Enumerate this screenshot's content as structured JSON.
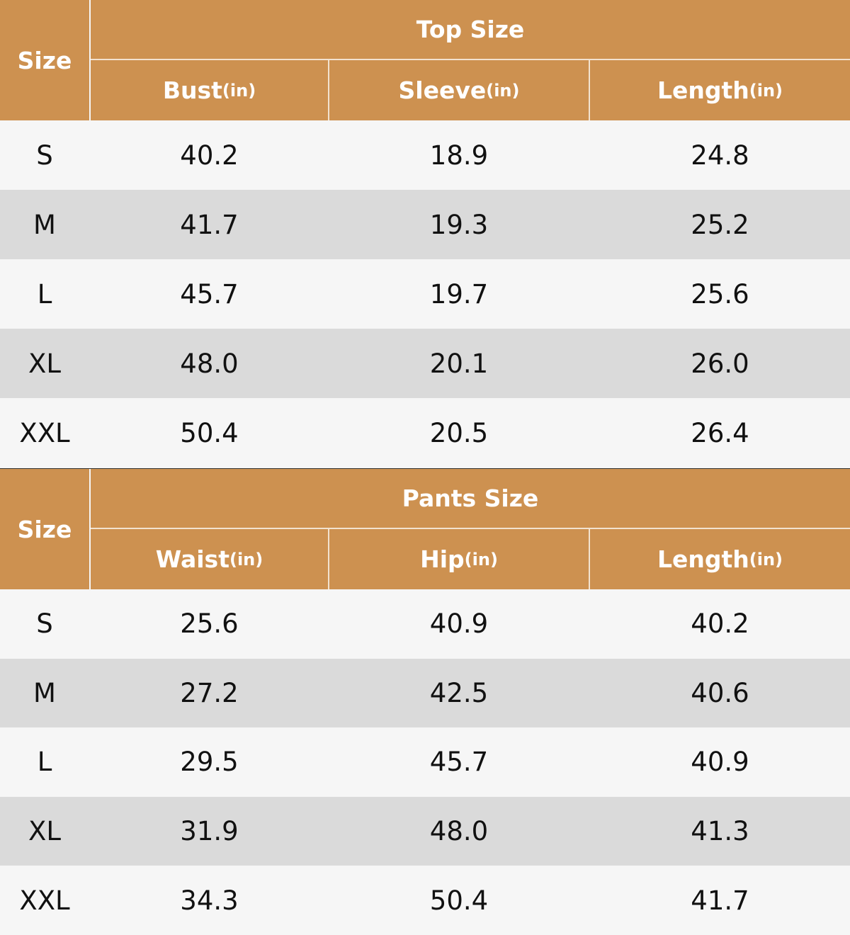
{
  "tables": [
    {
      "size_header": "Size",
      "group_title": "Top Size",
      "columns": [
        {
          "name": "Bust",
          "unit": "(in)"
        },
        {
          "name": "Sleeve",
          "unit": "(in)"
        },
        {
          "name": "Length",
          "unit": "(in)"
        }
      ],
      "rows": [
        [
          "S",
          "40.2",
          "18.9",
          "24.8"
        ],
        [
          "M",
          "41.7",
          "19.3",
          "25.2"
        ],
        [
          "L",
          "45.7",
          "19.7",
          "25.6"
        ],
        [
          "XL",
          "48.0",
          "20.1",
          "26.0"
        ],
        [
          "XXL",
          "50.4",
          "20.5",
          "26.4"
        ]
      ]
    },
    {
      "size_header": "Size",
      "group_title": "Pants Size",
      "columns": [
        {
          "name": "Waist",
          "unit": "(in)"
        },
        {
          "name": "Hip",
          "unit": "(in)"
        },
        {
          "name": "Length",
          "unit": "(in)"
        }
      ],
      "rows": [
        [
          "S",
          "25.6",
          "40.9",
          "40.2"
        ],
        [
          "M",
          "27.2",
          "42.5",
          "40.6"
        ],
        [
          "L",
          "29.5",
          "45.7",
          "40.9"
        ],
        [
          "XL",
          "31.9",
          "48.0",
          "41.3"
        ],
        [
          "XXL",
          "34.3",
          "50.4",
          "41.7"
        ]
      ]
    }
  ]
}
